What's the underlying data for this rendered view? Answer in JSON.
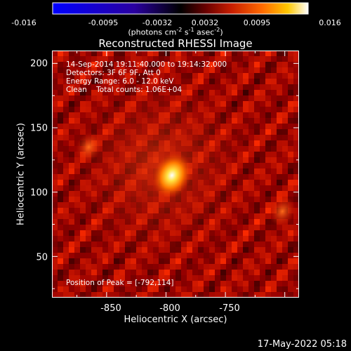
{
  "colorbar": {
    "ticks": [
      "-0.016",
      "-0.0095",
      "-0.0032",
      "0.0032",
      "0.0095",
      "0.016"
    ],
    "unit_parts": [
      "(photons cm",
      "-2",
      " s",
      "-1",
      " asec",
      "-2",
      ")"
    ]
  },
  "title": "Reconstructed RHESSI Image",
  "info": {
    "time": "14-Sep-2014 19:11:40.000 to 19:14:32.000",
    "detectors": "Detectors: 3F 6F 9F, Att 0",
    "energy": "Energy Range: 6.0 - 12.0 keV",
    "clean": "Clean    Total counts: 1.06E+04",
    "peak": "Position of Peak = [-792,114]"
  },
  "chart_data": {
    "type": "heatmap",
    "title": "Reconstructed RHESSI Image",
    "xlabel": "Heliocentric X (arcsec)",
    "ylabel": "Heliocentric Y (arcsec)",
    "xlim": [
      -896,
      -688
    ],
    "ylim": [
      18,
      210
    ],
    "x_ticks": [
      "-850",
      "-800",
      "-750"
    ],
    "y_ticks": [
      "200",
      "150",
      "100",
      "50"
    ],
    "colorbar_range": [
      -0.016,
      0.016
    ],
    "peak_position": [
      -792,
      114
    ],
    "sources": [
      {
        "x": -795,
        "y": 113,
        "strength": 1.0
      },
      {
        "x": -865,
        "y": 135,
        "strength": 0.45
      },
      {
        "x": -702,
        "y": 85,
        "strength": 0.4
      }
    ]
  },
  "colors": {
    "colormap": [
      "#0000ff",
      "#000000",
      "#6a0000",
      "#c81e00",
      "#ff6a00",
      "#ffc800",
      "#ffffff"
    ]
  },
  "timestamp": "17-May-2022 05:18"
}
